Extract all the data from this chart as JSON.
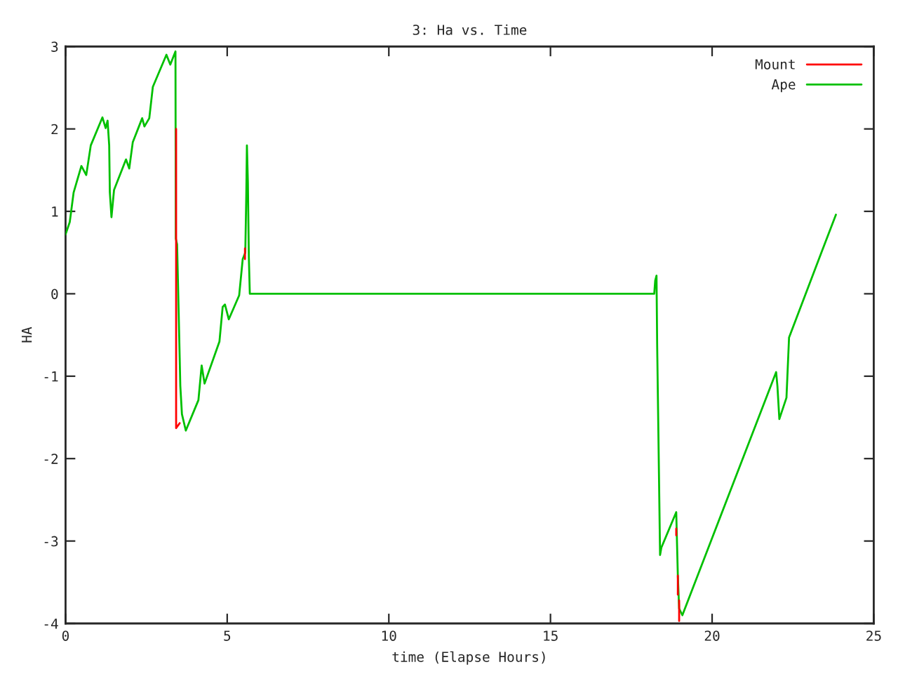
{
  "chart_data": {
    "type": "line",
    "title": "3: Ha vs. Time",
    "xlabel": "time (Elapse Hours)",
    "ylabel": "HA",
    "xlim": [
      0,
      25
    ],
    "xticks": [
      0,
      5,
      10,
      15,
      20,
      25
    ],
    "ylim": [
      -4,
      3
    ],
    "yticks": [
      -4,
      -3,
      -2,
      -1,
      0,
      1,
      2,
      3
    ],
    "grid": false,
    "legend": "top right",
    "marker": "none",
    "line_style": "solid",
    "series": [
      {
        "name": "Mount",
        "color": "#ff0000",
        "x": [
          3.42,
          3.42,
          3.53,
          null,
          5.55,
          5.55,
          null,
          18.89,
          18.89,
          null,
          18.94,
          18.94,
          null,
          18.98,
          18.98
        ],
        "values": [
          2.0,
          -1.63,
          -1.57,
          null,
          0.42,
          0.55,
          null,
          -2.85,
          -2.93,
          null,
          -3.42,
          -3.65,
          null,
          -3.72,
          -3.97
        ]
      },
      {
        "name": "Ape",
        "color": "#00c000",
        "x": [
          0,
          0.13,
          0.25,
          0.49,
          0.64,
          0.78,
          1.14,
          1.24,
          1.3,
          1.35,
          1.37,
          1.42,
          1.5,
          1.87,
          1.97,
          2.08,
          2.37,
          2.44,
          2.59,
          2.7,
          3.12,
          3.24,
          3.4,
          3.41,
          3.45,
          3.5,
          3.55,
          3.6,
          3.72,
          4.11,
          4.21,
          4.3,
          4.76,
          4.86,
          4.93,
          5.05,
          5.37,
          5.48,
          5.56,
          5.59,
          5.61,
          5.64,
          5.67,
          5.7,
          18.21,
          18.24,
          18.28,
          18.3,
          18.36,
          18.39,
          18.43,
          18.89,
          18.94,
          18.98,
          19.08,
          21.98,
          22.02,
          22.08,
          22.3,
          22.38,
          23.38,
          23.83
        ],
        "values": [
          0.72,
          0.87,
          1.23,
          1.55,
          1.44,
          1.8,
          2.14,
          2.01,
          2.1,
          1.8,
          1.23,
          0.93,
          1.26,
          1.63,
          1.52,
          1.84,
          2.13,
          2.03,
          2.13,
          2.51,
          2.9,
          2.78,
          2.94,
          0.67,
          0.6,
          -0.24,
          -1.12,
          -1.46,
          -1.66,
          -1.29,
          -0.87,
          -1.09,
          -0.58,
          -0.16,
          -0.13,
          -0.31,
          -0.02,
          0.42,
          0.5,
          1.18,
          1.8,
          1.35,
          0.44,
          0.0,
          0.0,
          0.16,
          0.22,
          -0.61,
          -2.31,
          -3.17,
          -3.08,
          -2.65,
          -3.42,
          -3.82,
          -3.9,
          -0.95,
          -1.12,
          -1.52,
          -1.26,
          -0.53,
          0.5,
          0.96
        ]
      }
    ]
  }
}
